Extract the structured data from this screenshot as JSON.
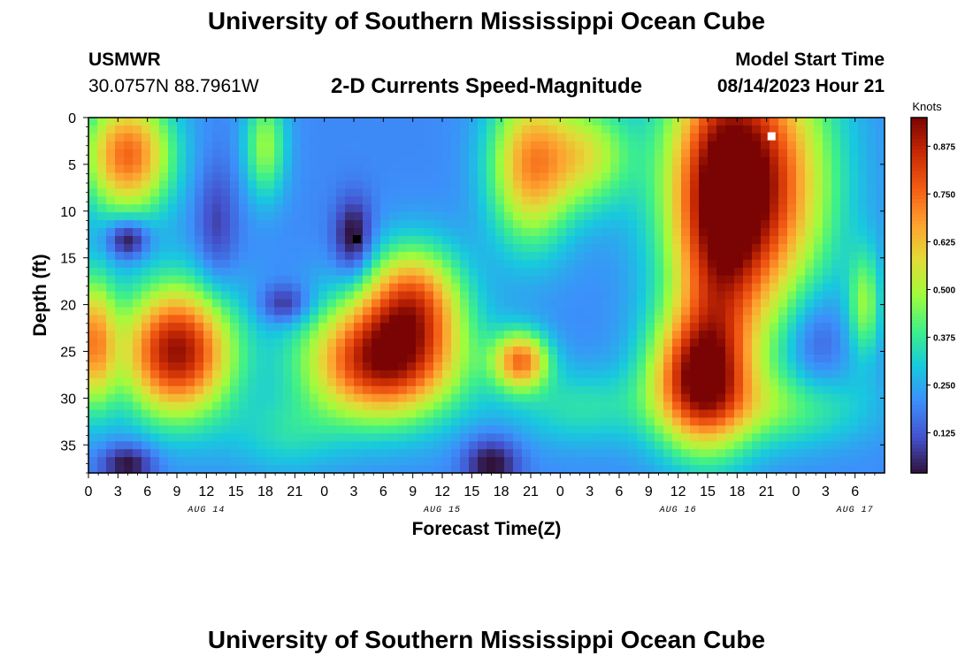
{
  "header": {
    "title": "University of Southern Mississippi Ocean Cube",
    "station": "USMWR",
    "coords": "30.0757N  88.7961W",
    "subtitle": "2-D Currents Speed-Magnitude",
    "start_label": "Model Start Time",
    "start_value": "08/14/2023 Hour 21"
  },
  "footer": {
    "title": "University of Southern Mississippi Ocean Cube"
  },
  "chart_data": {
    "type": "heatmap",
    "title": "2-D Currents Speed-Magnitude",
    "xlabel": "Forecast Time(Z)",
    "ylabel": "Depth (ft)",
    "colorbar_label": "Knots",
    "x_range_hours": [
      0,
      81
    ],
    "y_range_ft": [
      0,
      38
    ],
    "x_ticks": [
      "0",
      "3",
      "6",
      "9",
      "12",
      "15",
      "18",
      "21",
      "0",
      "3",
      "6",
      "9",
      "12",
      "15",
      "18",
      "21",
      "0",
      "3",
      "6",
      "9",
      "12",
      "15",
      "18",
      "21",
      "0",
      "3",
      "6"
    ],
    "y_ticks": [
      0,
      5,
      10,
      15,
      20,
      25,
      30,
      35
    ],
    "date_labels": [
      {
        "label": "AUG 14",
        "hour": 12
      },
      {
        "label": "AUG 15",
        "hour": 36
      },
      {
        "label": "AUG 16",
        "hour": 60
      },
      {
        "label": "AUG 17",
        "hour": 78
      }
    ],
    "colorbar_range": [
      0.02,
      0.95
    ],
    "colorbar_ticks": [
      "0.125",
      "0.250",
      "0.375",
      "0.500",
      "0.625",
      "0.750",
      "0.875"
    ],
    "markers": [
      {
        "name": "max-marker",
        "hour": 69.5,
        "depth": 2,
        "color": "#ffffff"
      },
      {
        "name": "min-marker",
        "hour": 27.3,
        "depth": 13,
        "color": "#000000"
      }
    ],
    "field_blobs": [
      {
        "x": 4,
        "y": 4,
        "sx": 3.2,
        "sy": 4.5,
        "a": 0.55
      },
      {
        "x": 18,
        "y": 3,
        "sx": 1.5,
        "sy": 4,
        "a": 0.28
      },
      {
        "x": 0.5,
        "y": 24,
        "sx": 1.6,
        "sy": 5,
        "a": 0.45
      },
      {
        "x": 9,
        "y": 25,
        "sx": 4,
        "sy": 5,
        "a": 0.72
      },
      {
        "x": 30,
        "y": 26,
        "sx": 5.5,
        "sy": 4.5,
        "a": 0.72
      },
      {
        "x": 33,
        "y": 19,
        "sx": 3.5,
        "sy": 4,
        "a": 0.45
      },
      {
        "x": 45,
        "y": 5,
        "sx": 3,
        "sy": 6,
        "a": 0.48
      },
      {
        "x": 51,
        "y": 4,
        "sx": 3,
        "sy": 4,
        "a": 0.3
      },
      {
        "x": 44,
        "y": 26,
        "sx": 2,
        "sy": 2.2,
        "a": 0.5
      },
      {
        "x": 67,
        "y": 7,
        "sx": 5.5,
        "sy": 10,
        "a": 0.75
      },
      {
        "x": 64,
        "y": 14,
        "sx": 3,
        "sy": 12,
        "a": 0.3
      },
      {
        "x": 62,
        "y": 28,
        "sx": 3.5,
        "sy": 5,
        "a": 0.62
      },
      {
        "x": 79,
        "y": 20,
        "sx": 1.2,
        "sy": 4,
        "a": 0.25
      },
      {
        "x": 50,
        "y": 31,
        "sx": 5,
        "sy": 3,
        "a": 0.15
      },
      {
        "x": 71,
        "y": 31,
        "sx": 6,
        "sy": 3,
        "a": 0.2
      },
      {
        "x": 20,
        "y": 34,
        "sx": 4,
        "sy": 3,
        "a": 0.12
      },
      {
        "x": 4,
        "y": 13,
        "sx": 1.5,
        "sy": 1.5,
        "a": -0.25
      },
      {
        "x": 27,
        "y": 13,
        "sx": 1.4,
        "sy": 3,
        "a": -0.22
      },
      {
        "x": 20,
        "y": 20,
        "sx": 1.8,
        "sy": 1.5,
        "a": -0.18
      },
      {
        "x": 13,
        "y": 12,
        "sx": 1.5,
        "sy": 5,
        "a": -0.12
      },
      {
        "x": 4,
        "y": 37,
        "sx": 2,
        "sy": 1.5,
        "a": -0.2
      },
      {
        "x": 41,
        "y": 37,
        "sx": 2,
        "sy": 2,
        "a": -0.2
      },
      {
        "x": 74,
        "y": 24,
        "sx": 2,
        "sy": 4,
        "a": -0.12
      }
    ]
  }
}
